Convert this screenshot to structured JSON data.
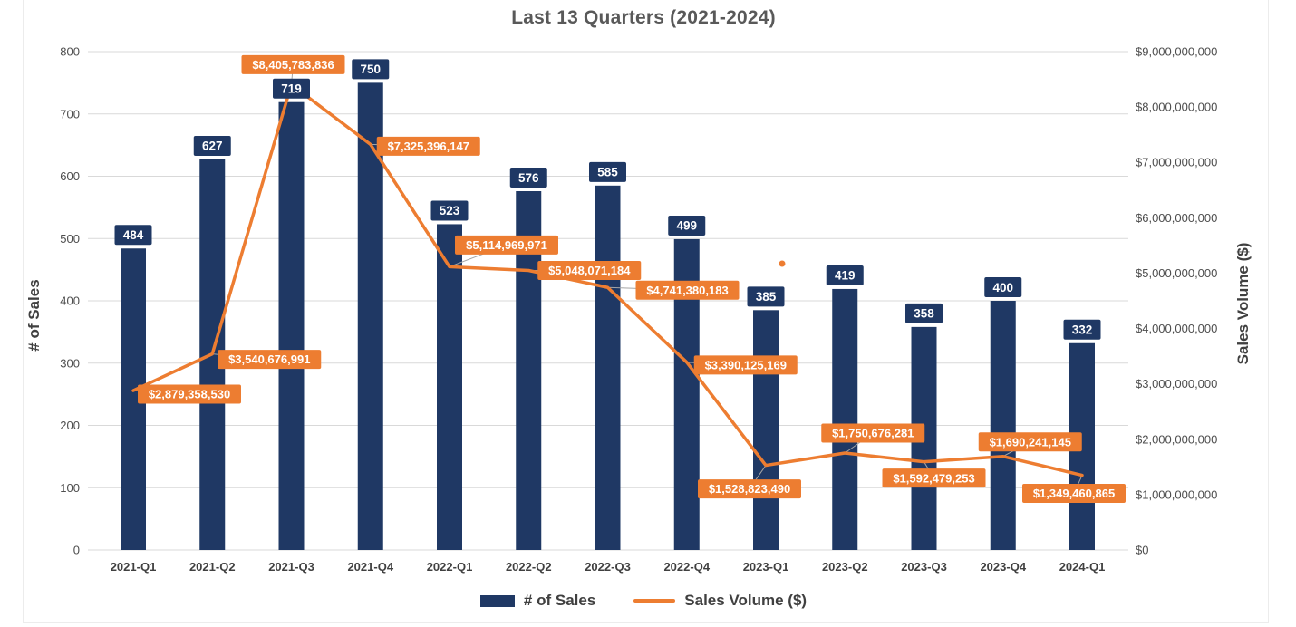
{
  "title": "Last 13 Quarters (2021-2024)",
  "legend": {
    "sales_label": "# of Sales",
    "volume_label": "Sales Volume ($)"
  },
  "axes": {
    "left_title": "# of Sales",
    "right_title": "Sales Volume ($)"
  },
  "colors": {
    "bar": "#1f3864",
    "line": "#ed7d31",
    "grid": "#d9d9d9",
    "tick_text": "#4d4d4d",
    "text": "#404040",
    "title": "#595959",
    "badge_text": "#ffffff",
    "leader": "#a6a6a6"
  },
  "chart_data": {
    "type": "bar+line combo",
    "title": "Last 13 Quarters (2021-2024)",
    "categories": [
      "2021-Q1",
      "2021-Q2",
      "2021-Q3",
      "2021-Q4",
      "2022-Q1",
      "2022-Q2",
      "2022-Q3",
      "2022-Q4",
      "2023-Q1",
      "2023-Q2",
      "2023-Q3",
      "2023-Q4",
      "2024-Q1"
    ],
    "series": [
      {
        "name": "# of Sales",
        "type": "bar",
        "axis": "left",
        "values": [
          484,
          627,
          719,
          750,
          523,
          576,
          585,
          499,
          385,
          419,
          358,
          400,
          332
        ]
      },
      {
        "name": "Sales Volume ($)",
        "type": "line",
        "axis": "right",
        "values": [
          2879358530,
          3540676991,
          8405783836,
          7325396147,
          5114969971,
          5048071184,
          4741380183,
          3390125169,
          1528823490,
          1750676281,
          1592479253,
          1690241145,
          1349460865
        ],
        "labels": [
          "$2,879,358,530",
          "$3,540,676,991",
          "$8,405,783,836",
          "$7,325,396,147",
          "$5,114,969,971",
          "$5,048,071,184",
          "$4,741,380,183",
          "$3,390,125,169",
          "$1,528,823,490",
          "$1,750,676,281",
          "$1,592,479,253",
          "$1,690,241,145",
          "$1,349,460,865"
        ]
      }
    ],
    "left_axis": {
      "label": "# of Sales",
      "min": 0,
      "max": 800,
      "step": 100,
      "ticks": [
        "0",
        "100",
        "200",
        "300",
        "400",
        "500",
        "600",
        "700",
        "800"
      ]
    },
    "right_axis": {
      "label": "Sales Volume ($)",
      "min": 0,
      "max": 9000000000,
      "step": 1000000000,
      "ticks": [
        "$0",
        "$1,000,000,000",
        "$2,000,000,000",
        "$3,000,000,000",
        "$4,000,000,000",
        "$5,000,000,000",
        "$6,000,000,000",
        "$7,000,000,000",
        "$8,000,000,000",
        "$9,000,000,000"
      ]
    },
    "legend_position": "bottom",
    "grid": true
  }
}
